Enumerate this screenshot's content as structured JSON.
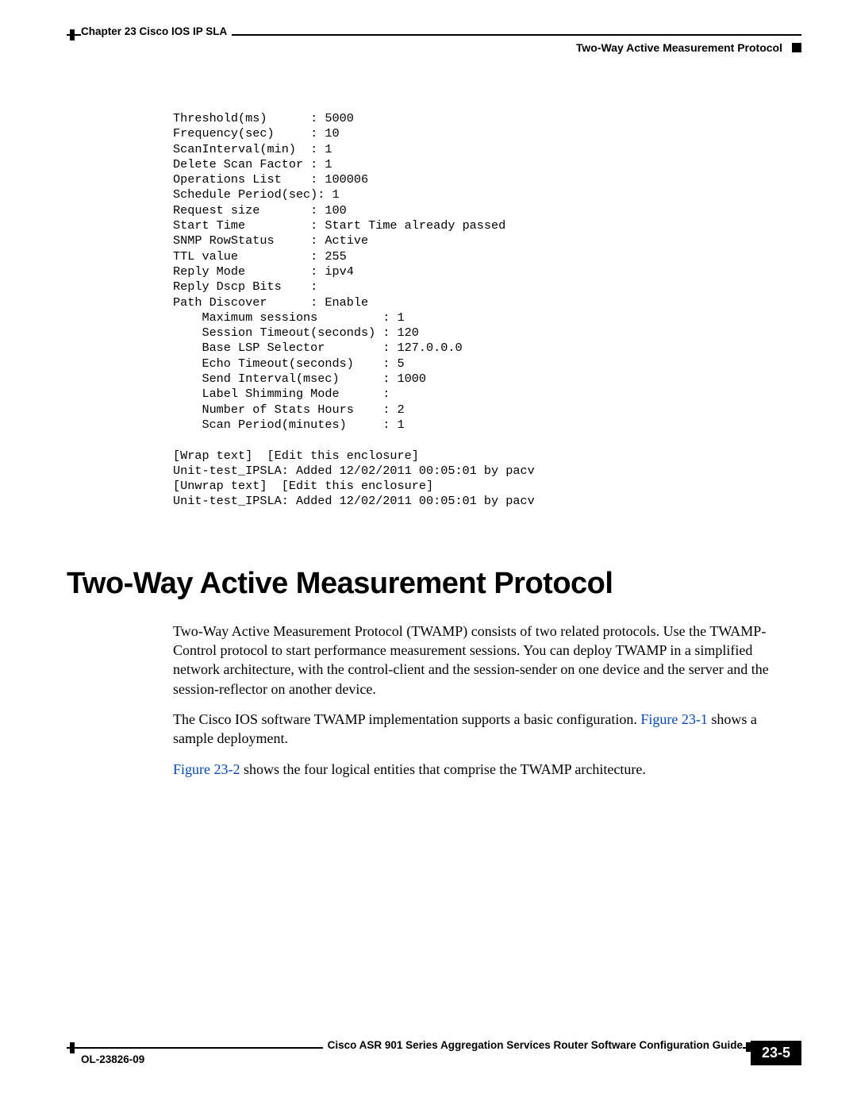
{
  "header": {
    "chapter": "Chapter 23    Cisco IOS IP SLA",
    "section": "Two-Way Active Measurement Protocol"
  },
  "code": {
    "threshold_label": "Threshold(ms)      :",
    "threshold_val": "5000",
    "frequency_label": "Frequency(sec)     :",
    "frequency_val": "10",
    "scaninterval_label": "ScanInterval(min)  :",
    "scaninterval_val": "1",
    "deletescan_label": "Delete Scan Factor :",
    "deletescan_val": "1",
    "operlist_label": "Operations List    :",
    "operlist_val": "100006",
    "schedule_label": "Schedule Period(sec):",
    "schedule_val": "1",
    "reqsize_label": "Request size       :",
    "reqsize_val": "100",
    "starttime_label": "Start Time         :",
    "starttime_val": "Start Time already passed",
    "snmp_label": "SNMP RowStatus     :",
    "snmp_val": "Active",
    "ttl_label": "TTL value          :",
    "ttl_val": "255",
    "replymode_label": "Reply Mode         :",
    "replymode_val": "ipv4",
    "replydscp_label": "Reply Dscp Bits    :",
    "pathdisc_label": "Path Discover      :",
    "pathdisc_val": "Enable",
    "maxsess_label": "    Maximum sessions         :",
    "maxsess_val": "1",
    "sesstimeout_label": "    Session Timeout(seconds) :",
    "sesstimeout_val": "120",
    "baselsp_label": "    Base LSP Selector        :",
    "baselsp_val": "127.0.0.0",
    "echotimeout_label": "    Echo Timeout(seconds)    :",
    "echotimeout_val": "5",
    "sendint_label": "    Send Interval(msec)      :",
    "sendint_val": "1000",
    "labelshim_label": "    Label Shimming Mode      :",
    "numstats_label": "    Number of Stats Hours    :",
    "numstats_val": "2",
    "scanperiod_label": "    Scan Period(minutes)     :",
    "scanperiod_val": "1",
    "wrap": "[Wrap text]  [Edit this enclosure]",
    "added1": "Unit-test_IPSLA: Added 12/02/2011 00:05:01 by pacv",
    "unwrap": "[Unwrap text]  [Edit this enclosure]",
    "added2": "Unit-test_IPSLA: Added 12/02/2011 00:05:01 by pacv"
  },
  "heading": "Two-Way Active Measurement Protocol",
  "body": {
    "p1": "Two-Way Active Measurement Protocol (TWAMP) consists of two related protocols. Use the TWAMP-Control protocol to start performance measurement sessions. You can deploy TWAMP in a simplified network architecture, with the control-client and the session-sender on one device and the server and the session-reflector on another device.",
    "p2_a": "The Cisco IOS software TWAMP implementation supports a basic configuration. ",
    "p2_link": "Figure 23-1",
    "p2_b": " shows a sample deployment.",
    "p3_link": "Figure 23-2",
    "p3_b": " shows the four logical entities that comprise the TWAMP architecture."
  },
  "footer": {
    "doc": "Cisco ASR 901 Series Aggregation Services Router Software Configuration Guide",
    "ol": "OL-23826-09",
    "pagenum": "23-5"
  }
}
